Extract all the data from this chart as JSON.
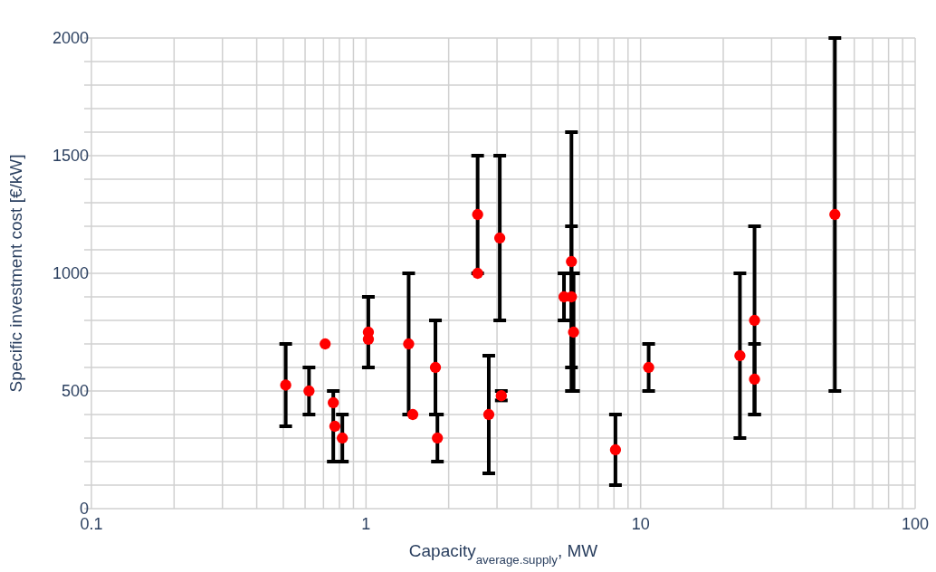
{
  "chart_data": {
    "type": "scatter",
    "xlabel": "Capacity$_{average.supply}$, MW",
    "ylabel": "Specific investment cost [€/kW]",
    "log": "x",
    "grid": true,
    "marker": "circle",
    "xlim": [
      0.1,
      100
    ],
    "ylim": [
      0,
      2000
    ],
    "xticks": [
      0.1,
      {
        "value": 0.2,
        "label": null
      },
      {
        "value": 0.3,
        "label": null
      },
      {
        "value": 0.4,
        "label": null
      },
      {
        "value": 0.5,
        "label": null
      },
      {
        "value": 0.6,
        "label": null
      },
      {
        "value": 0.7,
        "label": null
      },
      {
        "value": 0.8,
        "label": null
      },
      {
        "value": 0.9,
        "label": null
      },
      1,
      {
        "value": 2,
        "label": null
      },
      {
        "value": 3,
        "label": null
      },
      {
        "value": 4,
        "label": null
      },
      {
        "value": 5,
        "label": null
      },
      {
        "value": 6,
        "label": null
      },
      {
        "value": 7,
        "label": null
      },
      {
        "value": 8,
        "label": null
      },
      {
        "value": 9,
        "label": null
      },
      10,
      {
        "value": 20,
        "label": null
      },
      {
        "value": 30,
        "label": null
      },
      {
        "value": 40,
        "label": null
      },
      {
        "value": 50,
        "label": null
      },
      {
        "value": 60,
        "label": null
      },
      {
        "value": 70,
        "label": null
      },
      {
        "value": 80,
        "label": null
      },
      {
        "value": 90,
        "label": null
      },
      100
    ],
    "yticks": [
      0,
      {
        "value": 100,
        "label": null
      },
      {
        "value": 200,
        "label": null
      },
      {
        "value": 300,
        "label": null
      },
      {
        "value": 400,
        "label": null
      },
      500,
      {
        "value": 600,
        "label": null
      },
      {
        "value": 700,
        "label": null
      },
      {
        "value": 800,
        "label": null
      },
      {
        "value": 900,
        "label": null
      },
      1000,
      {
        "value": 1100,
        "label": null
      },
      {
        "value": 1200,
        "label": null
      },
      {
        "value": 1300,
        "label": null
      },
      {
        "value": 1400,
        "label": null
      },
      1500,
      {
        "value": 1600,
        "label": null
      },
      {
        "value": 1700,
        "label": null
      },
      {
        "value": 1800,
        "label": null
      },
      {
        "value": 1900,
        "label": null
      },
      2000
    ],
    "series": [
      {
        "color": "#ff0000",
        "x": [
          0.51,
          0.62,
          0.71,
          0.76,
          0.77,
          0.82,
          1.02,
          1.02,
          1.43,
          1.48,
          1.79,
          1.82,
          2.55,
          2.55,
          2.8,
          3.07,
          3.11,
          5.26,
          5.6,
          5.6,
          5.7,
          8.1,
          10.7,
          23,
          26,
          26,
          51
        ],
        "values": [
          525,
          500,
          700,
          450,
          350,
          300,
          750,
          720,
          700,
          400,
          600,
          300,
          1250,
          1000,
          400,
          1150,
          480,
          900,
          1050,
          900,
          750,
          250,
          600,
          650,
          800,
          550,
          1250
        ],
        "errors": [
          [
            350,
            700
          ],
          [
            400,
            600
          ],
          null,
          [
            200,
            500
          ],
          null,
          [
            200,
            400
          ],
          [
            600,
            900
          ],
          null,
          [
            400,
            1000
          ],
          null,
          [
            400,
            800
          ],
          [
            200,
            400
          ],
          null,
          [
            1000,
            1500
          ],
          [
            150,
            650
          ],
          [
            800,
            1500
          ],
          [
            460,
            500
          ],
          [
            800,
            1000
          ],
          [
            500,
            1600
          ],
          [
            600,
            1200
          ],
          [
            500,
            1000
          ],
          [
            100,
            400
          ],
          [
            500,
            700
          ],
          [
            300,
            1000
          ],
          [
            400,
            1200
          ],
          [
            400,
            700
          ],
          [
            500,
            2000
          ]
        ]
      }
    ]
  }
}
